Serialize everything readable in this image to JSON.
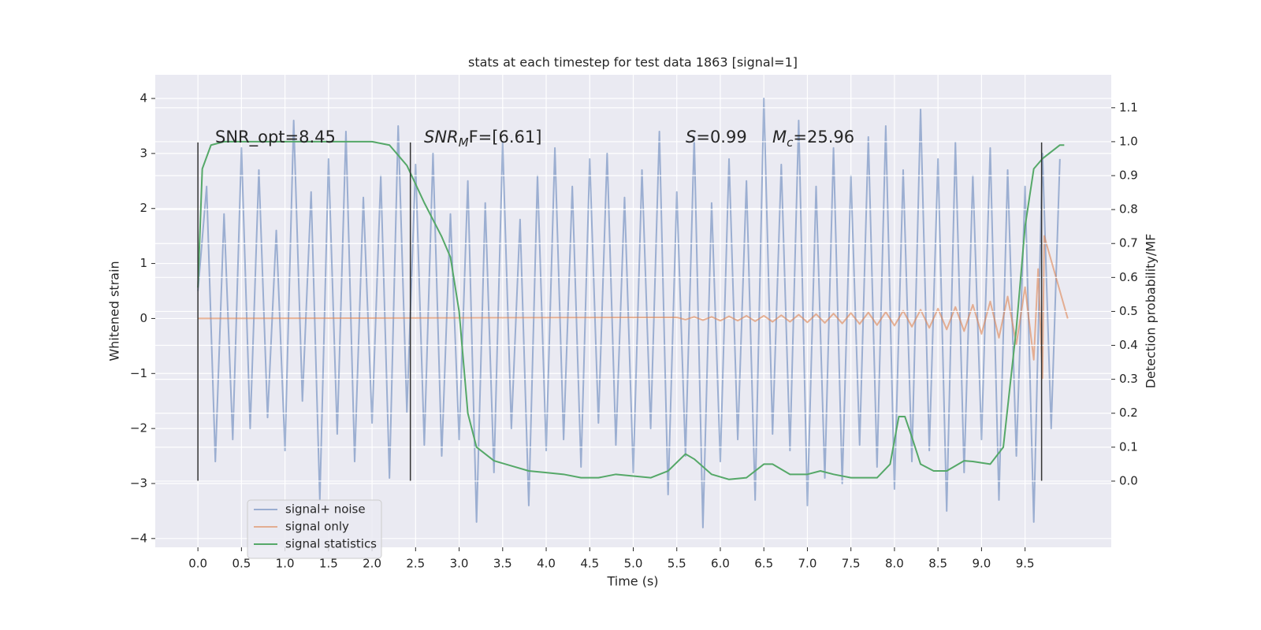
{
  "chart_data": {
    "type": "line",
    "title": "stats at each timestep for test data 1863 [signal=1]",
    "xlabel": "Time (s)",
    "ylabel": "Whitened strain",
    "y2label": "Detection probability/MF",
    "xlim": [
      -0.49,
      10.49
    ],
    "ylim": [
      -4.16,
      4.43
    ],
    "y2lim": [
      -0.195,
      1.197
    ],
    "xticks": [
      {
        "value": 0,
        "label": "0.0"
      },
      {
        "value": 0.5,
        "label": "0.5"
      },
      {
        "value": 1,
        "label": "1.0"
      },
      {
        "value": 1.5,
        "label": "1.5"
      },
      {
        "value": 2,
        "label": "2.0"
      },
      {
        "value": 2.5,
        "label": "2.5"
      },
      {
        "value": 3,
        "label": "3.0"
      },
      {
        "value": 3.5,
        "label": "3.5"
      },
      {
        "value": 4,
        "label": "4.0"
      },
      {
        "value": 4.5,
        "label": "4.5"
      },
      {
        "value": 5,
        "label": "5.0"
      },
      {
        "value": 5.5,
        "label": "5.5"
      },
      {
        "value": 6,
        "label": "6.0"
      },
      {
        "value": 6.5,
        "label": "6.5"
      },
      {
        "value": 7,
        "label": "7.0"
      },
      {
        "value": 7.5,
        "label": "7.5"
      },
      {
        "value": 8,
        "label": "8.0"
      },
      {
        "value": 8.5,
        "label": "8.5"
      },
      {
        "value": 9,
        "label": "9.0"
      },
      {
        "value": 9.5,
        "label": "9.5"
      }
    ],
    "yticks": [
      {
        "value": -4,
        "label": "−4"
      },
      {
        "value": -3,
        "label": "−3"
      },
      {
        "value": -2,
        "label": "−2"
      },
      {
        "value": -1,
        "label": "−1"
      },
      0,
      1,
      2,
      3,
      4
    ],
    "y2ticks": [
      {
        "value": 0,
        "label": "0.0"
      },
      {
        "value": 0.1,
        "label": "0.1"
      },
      {
        "value": 0.2,
        "label": "0.2"
      },
      {
        "value": 0.3,
        "label": "0.3"
      },
      {
        "value": 0.4,
        "label": "0.4"
      },
      {
        "value": 0.5,
        "label": "0.5"
      },
      {
        "value": 0.6,
        "label": "0.6"
      },
      {
        "value": 0.7,
        "label": "0.7"
      },
      {
        "value": 0.8,
        "label": "0.8"
      },
      {
        "value": 0.9,
        "label": "0.9"
      },
      {
        "value": 1,
        "label": "1.0"
      },
      {
        "value": 1.1,
        "label": "1.1"
      }
    ],
    "grid": true,
    "legend": "lower left",
    "series": [
      {
        "name": "signal+ noise",
        "color": "#4c72b0",
        "opacity": 0.5,
        "x": [
          0,
          0.1,
          0.2,
          0.3,
          0.4,
          0.5,
          0.6,
          0.7,
          0.8,
          0.9,
          1,
          1.1,
          1.2,
          1.3,
          1.4,
          1.5,
          1.6,
          1.7,
          1.8,
          1.9,
          2,
          2.1,
          2.2,
          2.3,
          2.4,
          2.5,
          2.6,
          2.7,
          2.8,
          2.9,
          3,
          3.1,
          3.2,
          3.3,
          3.4,
          3.5,
          3.6,
          3.7,
          3.8,
          3.9,
          4,
          4.1,
          4.2,
          4.3,
          4.4,
          4.5,
          4.6,
          4.7,
          4.8,
          4.9,
          5,
          5.1,
          5.2,
          5.3,
          5.4,
          5.5,
          5.6,
          5.7,
          5.8,
          5.9,
          6,
          6.1,
          6.2,
          6.3,
          6.4,
          6.5,
          6.6,
          6.7,
          6.8,
          6.9,
          7,
          7.1,
          7.2,
          7.3,
          7.4,
          7.5,
          7.6,
          7.7,
          7.8,
          7.9,
          8,
          8.1,
          8.2,
          8.3,
          8.4,
          8.5,
          8.6,
          8.7,
          8.8,
          8.9,
          9,
          9.1,
          9.2,
          9.3,
          9.4,
          9.5,
          9.6,
          9.7,
          9.8,
          9.9
        ],
        "values": [
          0.5,
          2.4,
          -2.6,
          1.9,
          -2.2,
          3.1,
          -2.0,
          2.7,
          -1.8,
          1.6,
          -2.4,
          3.6,
          -1.5,
          2.3,
          -3.3,
          2.9,
          -2.1,
          3.4,
          -2.6,
          2.2,
          -1.9,
          2.6,
          -2.9,
          3.5,
          -1.7,
          2.8,
          -2.3,
          3.0,
          -2.5,
          1.9,
          -2.2,
          2.5,
          -3.7,
          2.1,
          -2.8,
          3.2,
          -2.0,
          1.8,
          -3.4,
          2.6,
          -2.4,
          3.1,
          -2.2,
          2.4,
          -2.7,
          2.9,
          -1.9,
          3.0,
          -2.3,
          2.2,
          -2.8,
          2.7,
          -2.0,
          3.4,
          -3.2,
          2.3,
          -2.5,
          3.3,
          -3.8,
          2.1,
          -2.6,
          2.9,
          -2.2,
          2.5,
          -3.3,
          4.0,
          -2.1,
          2.8,
          -2.4,
          3.6,
          -3.4,
          2.4,
          -2.9,
          3.1,
          -3.0,
          2.6,
          -2.3,
          3.3,
          -2.7,
          3.5,
          -3.1,
          2.7,
          -2.6,
          3.8,
          -2.4,
          2.9,
          -3.5,
          3.2,
          -2.8,
          2.6,
          -2.2,
          3.1,
          -3.3,
          2.7,
          -2.5,
          2.4,
          -3.7,
          3.0,
          -2.0,
          2.9
        ]
      },
      {
        "name": "signal only",
        "color": "#dd8452",
        "opacity": 0.6,
        "x": [
          0,
          5.5,
          5.6,
          5.7,
          5.8,
          5.9,
          6,
          6.1,
          6.2,
          6.3,
          6.4,
          6.5,
          6.6,
          6.7,
          6.8,
          6.9,
          7,
          7.1,
          7.2,
          7.3,
          7.4,
          7.5,
          7.6,
          7.7,
          7.8,
          7.9,
          8,
          8.1,
          8.2,
          8.3,
          8.4,
          8.5,
          8.6,
          8.7,
          8.8,
          8.9,
          9,
          9.1,
          9.2,
          9.3,
          9.4,
          9.5,
          9.6,
          9.65,
          9.7,
          9.72,
          9.99
        ],
        "values": [
          0,
          0.02,
          -0.02,
          0.03,
          -0.03,
          0.03,
          -0.04,
          0.04,
          -0.04,
          0.05,
          -0.05,
          0.05,
          -0.06,
          0.06,
          -0.06,
          0.07,
          -0.07,
          0.08,
          -0.08,
          0.09,
          -0.09,
          0.1,
          -0.1,
          0.11,
          -0.12,
          0.12,
          -0.13,
          0.14,
          -0.15,
          0.16,
          -0.17,
          0.18,
          -0.2,
          0.21,
          -0.23,
          0.25,
          -0.28,
          0.31,
          -0.35,
          0.4,
          -0.47,
          0.57,
          -0.75,
          0.9,
          -1.1,
          1.5,
          0
        ]
      },
      {
        "name": "signal statistics",
        "color": "#55a868",
        "axis": "y2",
        "x": [
          0,
          0.05,
          0.15,
          0.3,
          1,
          2,
          2.2,
          2.4,
          2.6,
          2.8,
          2.9,
          3,
          3.1,
          3.2,
          3.4,
          3.6,
          3.8,
          4,
          4.2,
          4.4,
          4.6,
          4.8,
          5,
          5.2,
          5.4,
          5.6,
          5.7,
          5.9,
          6.1,
          6.3,
          6.5,
          6.6,
          6.8,
          7,
          7.15,
          7.3,
          7.5,
          7.8,
          7.95,
          8.05,
          8.12,
          8.2,
          8.3,
          8.45,
          8.6,
          8.8,
          8.9,
          9.1,
          9.25,
          9.4,
          9.5,
          9.6,
          9.7,
          9.8,
          9.9,
          9.95
        ],
        "values": [
          0.57,
          0.92,
          0.99,
          1.0,
          1.0,
          1.0,
          0.99,
          0.93,
          0.82,
          0.72,
          0.66,
          0.5,
          0.2,
          0.1,
          0.06,
          0.045,
          0.03,
          0.025,
          0.02,
          0.01,
          0.01,
          0.02,
          0.015,
          0.01,
          0.03,
          0.08,
          0.065,
          0.02,
          0.005,
          0.01,
          0.05,
          0.05,
          0.02,
          0.02,
          0.03,
          0.02,
          0.01,
          0.01,
          0.05,
          0.19,
          0.19,
          0.13,
          0.05,
          0.03,
          0.03,
          0.06,
          0.058,
          0.05,
          0.1,
          0.45,
          0.75,
          0.92,
          0.95,
          0.97,
          0.99,
          0.99
        ]
      }
    ],
    "vlines": {
      "x": [
        0,
        2.44,
        9.69
      ],
      "ymin": -2.95,
      "ymax": 3.2,
      "color": "#333333"
    },
    "annotations": [
      {
        "text": "SNR_opt=8.45"
      },
      {
        "main": "SNR",
        "sub": "M",
        "rest": "F=[6.61]"
      },
      {
        "main": "S",
        "rest": "=0.99"
      },
      {
        "main": "M",
        "sub": "c",
        "rest": "=25.96"
      }
    ]
  }
}
